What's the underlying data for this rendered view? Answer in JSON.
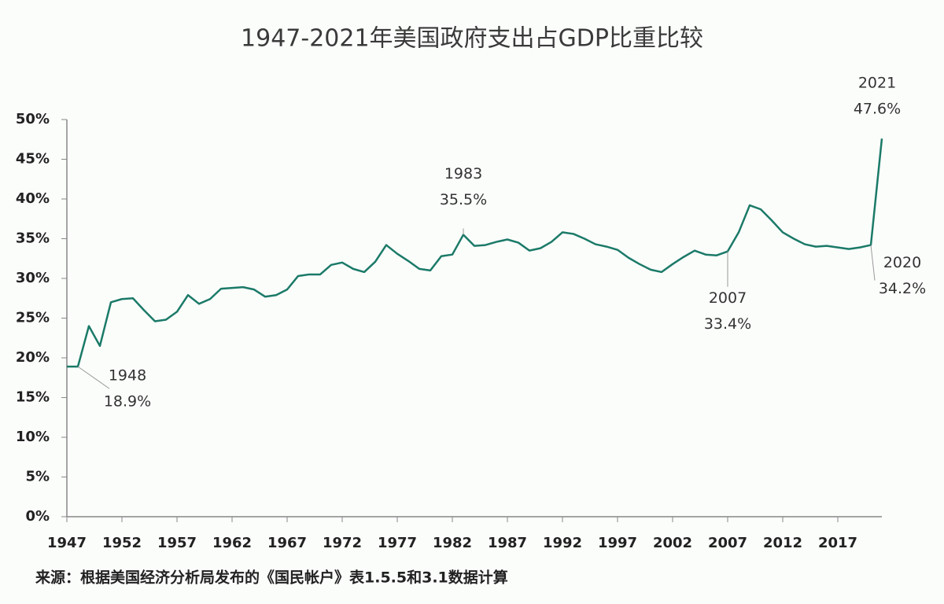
{
  "chart_data": {
    "type": "line",
    "title": "1947-2021年美国政府支出占GDP比重比较",
    "source": "来源：根据美国经济分析局发布的《国民帐户》表1.5.5和3.1数据计算",
    "x": [
      1947,
      1948,
      1949,
      1950,
      1951,
      1952,
      1953,
      1954,
      1955,
      1956,
      1957,
      1958,
      1959,
      1960,
      1961,
      1962,
      1963,
      1964,
      1965,
      1966,
      1967,
      1968,
      1969,
      1970,
      1971,
      1972,
      1973,
      1974,
      1975,
      1976,
      1977,
      1978,
      1979,
      1980,
      1981,
      1982,
      1983,
      1984,
      1985,
      1986,
      1987,
      1988,
      1989,
      1990,
      1991,
      1992,
      1993,
      1994,
      1995,
      1996,
      1997,
      1998,
      1999,
      2000,
      2001,
      2002,
      2003,
      2004,
      2005,
      2006,
      2007,
      2008,
      2009,
      2010,
      2011,
      2012,
      2013,
      2014,
      2015,
      2016,
      2017,
      2018,
      2019,
      2020,
      2021
    ],
    "series": [
      {
        "color": "#1b7a68",
        "values": [
          18.9,
          18.9,
          24.0,
          21.5,
          27.0,
          27.4,
          27.5,
          26.0,
          24.6,
          24.8,
          25.8,
          27.9,
          26.8,
          27.4,
          28.7,
          28.8,
          28.9,
          28.6,
          27.7,
          27.9,
          28.6,
          30.3,
          30.5,
          30.5,
          31.7,
          32.0,
          31.2,
          30.8,
          32.1,
          34.2,
          33.1,
          32.2,
          31.2,
          31.0,
          32.8,
          33.0,
          35.5,
          34.1,
          34.2,
          34.6,
          34.9,
          34.5,
          33.5,
          33.8,
          34.6,
          35.8,
          35.6,
          35.0,
          34.3,
          34.0,
          33.6,
          32.6,
          31.8,
          31.1,
          30.8,
          31.8,
          32.7,
          33.5,
          33.0,
          32.9,
          33.4,
          35.8,
          39.2,
          38.7,
          37.3,
          35.8,
          35.0,
          34.3,
          34.0,
          34.1,
          33.9,
          33.7,
          33.9,
          34.2,
          47.6
        ]
      }
    ],
    "xlim": [
      1947,
      2021
    ],
    "xticks": [
      1947,
      1952,
      1957,
      1962,
      1967,
      1972,
      1977,
      1982,
      1987,
      1992,
      1997,
      2002,
      2007,
      2012,
      2017
    ],
    "ylim": [
      0,
      50
    ],
    "yticks": [
      {
        "value": 0,
        "label": "0%"
      },
      {
        "value": 5,
        "label": "5%"
      },
      {
        "value": 10,
        "label": "10%"
      },
      {
        "value": 15,
        "label": "15%"
      },
      {
        "value": 20,
        "label": "20%"
      },
      {
        "value": 25,
        "label": "25%"
      },
      {
        "value": 30,
        "label": "30%"
      },
      {
        "value": 35,
        "label": "35%"
      },
      {
        "value": 40,
        "label": "40%"
      },
      {
        "value": 45,
        "label": "45%"
      },
      {
        "value": 50,
        "label": "50%"
      }
    ],
    "annotations": [
      {
        "x": 1948,
        "y": 18.9,
        "label": "18.9%"
      },
      {
        "x": 1983,
        "y": 35.5,
        "label": "35.5%"
      },
      {
        "x": 2007,
        "y": 33.4,
        "label": "33.4%"
      },
      {
        "x": 2020,
        "y": 34.2,
        "label": "34.2%"
      },
      {
        "x": 2021,
        "y": 47.6,
        "label": "47.6%"
      }
    ]
  }
}
